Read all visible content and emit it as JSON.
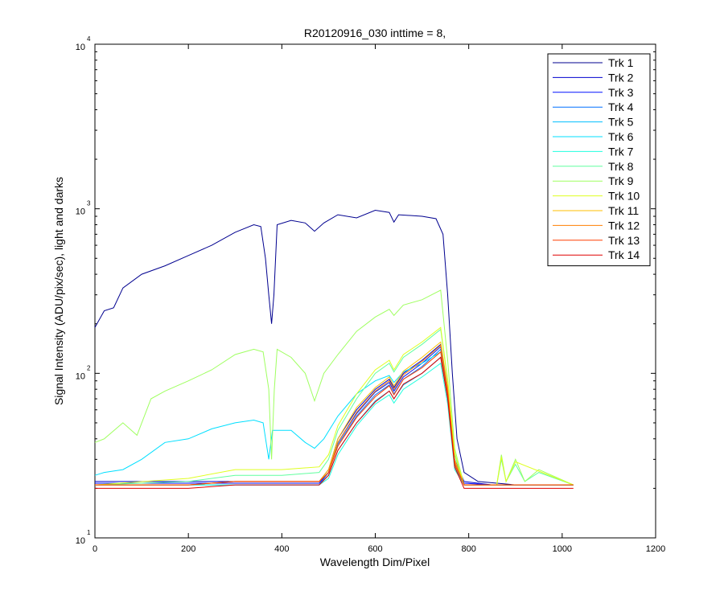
{
  "chart_data": {
    "type": "line",
    "title": "R20120916_030 inttime = 8,",
    "xlabel": "Wavelength Dim/Pixel",
    "ylabel": "Signal Intensity (ADU/pix/sec), light and darks",
    "xlim": [
      0,
      1200
    ],
    "ylim": [
      10,
      10000
    ],
    "yscale": "log",
    "xticks": [
      0,
      200,
      400,
      600,
      800,
      1000,
      1200
    ],
    "yticks": [
      10,
      100,
      1000,
      10000
    ],
    "ytick_labels": [
      {
        "base": "10",
        "exp": "1"
      },
      {
        "base": "10",
        "exp": "2"
      },
      {
        "base": "10",
        "exp": "3"
      },
      {
        "base": "10",
        "exp": "4"
      }
    ],
    "grid": false,
    "legend_position": "top-right",
    "series": [
      {
        "name": "Trk 1",
        "color": "#00008F",
        "values": [
          [
            0,
            190
          ],
          [
            20,
            240
          ],
          [
            40,
            250
          ],
          [
            60,
            330
          ],
          [
            100,
            400
          ],
          [
            150,
            450
          ],
          [
            200,
            520
          ],
          [
            250,
            600
          ],
          [
            300,
            720
          ],
          [
            340,
            800
          ],
          [
            355,
            780
          ],
          [
            365,
            500
          ],
          [
            372,
            300
          ],
          [
            378,
            200
          ],
          [
            383,
            300
          ],
          [
            390,
            800
          ],
          [
            420,
            850
          ],
          [
            450,
            820
          ],
          [
            470,
            730
          ],
          [
            490,
            820
          ],
          [
            520,
            920
          ],
          [
            560,
            880
          ],
          [
            600,
            980
          ],
          [
            630,
            950
          ],
          [
            640,
            830
          ],
          [
            650,
            920
          ],
          [
            700,
            900
          ],
          [
            730,
            870
          ],
          [
            745,
            700
          ],
          [
            755,
            300
          ],
          [
            765,
            100
          ],
          [
            775,
            40
          ],
          [
            790,
            25
          ],
          [
            820,
            22
          ],
          [
            900,
            21
          ],
          [
            1024,
            21
          ]
        ]
      },
      {
        "name": "Trk 2",
        "color": "#0000CF",
        "values": [
          [
            0,
            22
          ],
          [
            200,
            22
          ],
          [
            400,
            22
          ],
          [
            480,
            22
          ],
          [
            500,
            26
          ],
          [
            520,
            40
          ],
          [
            560,
            60
          ],
          [
            600,
            80
          ],
          [
            630,
            92
          ],
          [
            640,
            82
          ],
          [
            660,
            100
          ],
          [
            700,
            120
          ],
          [
            740,
            150
          ],
          [
            755,
            80
          ],
          [
            770,
            30
          ],
          [
            790,
            22
          ],
          [
            850,
            21
          ],
          [
            1024,
            21
          ]
        ]
      },
      {
        "name": "Trk 3",
        "color": "#0010FF",
        "values": [
          [
            0,
            21.5
          ],
          [
            200,
            21.5
          ],
          [
            400,
            21.5
          ],
          [
            480,
            21.5
          ],
          [
            500,
            25
          ],
          [
            520,
            38
          ],
          [
            560,
            57
          ],
          [
            600,
            77
          ],
          [
            630,
            88
          ],
          [
            640,
            78
          ],
          [
            660,
            95
          ],
          [
            700,
            115
          ],
          [
            740,
            145
          ],
          [
            755,
            78
          ],
          [
            770,
            29
          ],
          [
            790,
            21.5
          ],
          [
            850,
            21
          ],
          [
            1024,
            21
          ]
        ]
      },
      {
        "name": "Trk 4",
        "color": "#0070FF",
        "values": [
          [
            0,
            21
          ],
          [
            200,
            21
          ],
          [
            400,
            21
          ],
          [
            480,
            21
          ],
          [
            500,
            25
          ],
          [
            520,
            37
          ],
          [
            560,
            55
          ],
          [
            600,
            74
          ],
          [
            630,
            85
          ],
          [
            640,
            75
          ],
          [
            660,
            92
          ],
          [
            700,
            110
          ],
          [
            740,
            140
          ],
          [
            755,
            75
          ],
          [
            770,
            28
          ],
          [
            790,
            21
          ],
          [
            1024,
            21
          ]
        ]
      },
      {
        "name": "Trk 5",
        "color": "#00BFFF",
        "values": [
          [
            0,
            21
          ],
          [
            200,
            21
          ],
          [
            400,
            21
          ],
          [
            480,
            21
          ],
          [
            500,
            24
          ],
          [
            520,
            34
          ],
          [
            560,
            50
          ],
          [
            600,
            68
          ],
          [
            630,
            78
          ],
          [
            640,
            70
          ],
          [
            660,
            85
          ],
          [
            700,
            100
          ],
          [
            740,
            125
          ],
          [
            755,
            70
          ],
          [
            770,
            27
          ],
          [
            790,
            21
          ],
          [
            1024,
            21
          ]
        ]
      },
      {
        "name": "Trk 6",
        "color": "#00DFFF",
        "values": [
          [
            0,
            24
          ],
          [
            20,
            25
          ],
          [
            60,
            26
          ],
          [
            100,
            30
          ],
          [
            150,
            38
          ],
          [
            200,
            40
          ],
          [
            250,
            46
          ],
          [
            300,
            50
          ],
          [
            340,
            52
          ],
          [
            360,
            50
          ],
          [
            372,
            30
          ],
          [
            380,
            45
          ],
          [
            420,
            45
          ],
          [
            450,
            38
          ],
          [
            470,
            35
          ],
          [
            490,
            40
          ],
          [
            520,
            55
          ],
          [
            560,
            75
          ],
          [
            600,
            90
          ],
          [
            630,
            97
          ],
          [
            640,
            88
          ],
          [
            660,
            102
          ],
          [
            700,
            115
          ],
          [
            740,
            135
          ],
          [
            755,
            72
          ],
          [
            770,
            28
          ],
          [
            790,
            21
          ],
          [
            1024,
            21
          ]
        ]
      },
      {
        "name": "Trk 7",
        "color": "#20FFDF",
        "values": [
          [
            0,
            21
          ],
          [
            200,
            21
          ],
          [
            400,
            21
          ],
          [
            480,
            21
          ],
          [
            500,
            23
          ],
          [
            520,
            32
          ],
          [
            560,
            48
          ],
          [
            600,
            65
          ],
          [
            630,
            74
          ],
          [
            640,
            66
          ],
          [
            660,
            80
          ],
          [
            700,
            95
          ],
          [
            740,
            115
          ],
          [
            755,
            65
          ],
          [
            770,
            26
          ],
          [
            790,
            21
          ],
          [
            1024,
            21
          ]
        ]
      },
      {
        "name": "Trk 8",
        "color": "#60FF9F",
        "values": [
          [
            0,
            21
          ],
          [
            200,
            22
          ],
          [
            300,
            24
          ],
          [
            400,
            24
          ],
          [
            480,
            25
          ],
          [
            500,
            30
          ],
          [
            520,
            45
          ],
          [
            560,
            70
          ],
          [
            600,
            100
          ],
          [
            630,
            115
          ],
          [
            640,
            102
          ],
          [
            660,
            125
          ],
          [
            700,
            150
          ],
          [
            740,
            185
          ],
          [
            755,
            90
          ],
          [
            770,
            32
          ],
          [
            790,
            21
          ],
          [
            860,
            21
          ],
          [
            870,
            30
          ],
          [
            880,
            22
          ],
          [
            900,
            28
          ],
          [
            920,
            22
          ],
          [
            950,
            25
          ],
          [
            1024,
            21
          ]
        ]
      },
      {
        "name": "Trk 9",
        "color": "#9FFF60",
        "values": [
          [
            0,
            38
          ],
          [
            20,
            40
          ],
          [
            60,
            50
          ],
          [
            90,
            42
          ],
          [
            120,
            70
          ],
          [
            150,
            78
          ],
          [
            200,
            90
          ],
          [
            250,
            105
          ],
          [
            300,
            130
          ],
          [
            340,
            140
          ],
          [
            360,
            135
          ],
          [
            372,
            80
          ],
          [
            378,
            30
          ],
          [
            384,
            80
          ],
          [
            390,
            140
          ],
          [
            420,
            125
          ],
          [
            450,
            100
          ],
          [
            470,
            68
          ],
          [
            490,
            100
          ],
          [
            520,
            130
          ],
          [
            560,
            180
          ],
          [
            600,
            220
          ],
          [
            630,
            245
          ],
          [
            640,
            225
          ],
          [
            660,
            260
          ],
          [
            700,
            280
          ],
          [
            740,
            320
          ],
          [
            755,
            120
          ],
          [
            770,
            35
          ],
          [
            790,
            21
          ],
          [
            860,
            21
          ],
          [
            870,
            32
          ],
          [
            880,
            22
          ],
          [
            900,
            30
          ],
          [
            920,
            22
          ],
          [
            950,
            26
          ],
          [
            1024,
            21
          ]
        ]
      },
      {
        "name": "Trk 10",
        "color": "#DFFF20",
        "values": [
          [
            0,
            21
          ],
          [
            200,
            23
          ],
          [
            300,
            26
          ],
          [
            400,
            26
          ],
          [
            480,
            27
          ],
          [
            500,
            32
          ],
          [
            520,
            48
          ],
          [
            560,
            75
          ],
          [
            600,
            105
          ],
          [
            630,
            120
          ],
          [
            640,
            105
          ],
          [
            660,
            130
          ],
          [
            700,
            155
          ],
          [
            740,
            190
          ],
          [
            755,
            92
          ],
          [
            770,
            33
          ],
          [
            790,
            21
          ],
          [
            860,
            21
          ],
          [
            870,
            31
          ],
          [
            880,
            22
          ],
          [
            900,
            29
          ],
          [
            1024,
            21
          ]
        ]
      },
      {
        "name": "Trk 11",
        "color": "#FFBF00",
        "values": [
          [
            0,
            21
          ],
          [
            200,
            21
          ],
          [
            300,
            22
          ],
          [
            400,
            22
          ],
          [
            480,
            22
          ],
          [
            500,
            26
          ],
          [
            520,
            40
          ],
          [
            560,
            62
          ],
          [
            600,
            82
          ],
          [
            630,
            95
          ],
          [
            640,
            84
          ],
          [
            660,
            103
          ],
          [
            700,
            125
          ],
          [
            740,
            155
          ],
          [
            755,
            82
          ],
          [
            770,
            30
          ],
          [
            790,
            21
          ],
          [
            1024,
            21
          ]
        ]
      },
      {
        "name": "Trk 12",
        "color": "#FF7F00",
        "values": [
          [
            0,
            21
          ],
          [
            200,
            21
          ],
          [
            300,
            22
          ],
          [
            400,
            22
          ],
          [
            480,
            22
          ],
          [
            500,
            25
          ],
          [
            520,
            38
          ],
          [
            560,
            58
          ],
          [
            600,
            78
          ],
          [
            630,
            90
          ],
          [
            640,
            80
          ],
          [
            660,
            98
          ],
          [
            700,
            118
          ],
          [
            740,
            148
          ],
          [
            755,
            80
          ],
          [
            770,
            29
          ],
          [
            790,
            21
          ],
          [
            1024,
            21
          ]
        ]
      },
      {
        "name": "Trk 13",
        "color": "#FF3F00",
        "values": [
          [
            0,
            21
          ],
          [
            200,
            21
          ],
          [
            300,
            22
          ],
          [
            400,
            22
          ],
          [
            480,
            22
          ],
          [
            500,
            25
          ],
          [
            520,
            36
          ],
          [
            560,
            54
          ],
          [
            600,
            72
          ],
          [
            630,
            84
          ],
          [
            640,
            74
          ],
          [
            660,
            92
          ],
          [
            700,
            108
          ],
          [
            740,
            135
          ],
          [
            755,
            75
          ],
          [
            770,
            28
          ],
          [
            790,
            21
          ],
          [
            1024,
            21
          ]
        ]
      },
      {
        "name": "Trk 14",
        "color": "#DF0000",
        "values": [
          [
            0,
            20
          ],
          [
            200,
            20
          ],
          [
            300,
            21
          ],
          [
            400,
            21
          ],
          [
            480,
            21
          ],
          [
            500,
            24
          ],
          [
            520,
            34
          ],
          [
            560,
            50
          ],
          [
            600,
            67
          ],
          [
            630,
            78
          ],
          [
            640,
            70
          ],
          [
            660,
            86
          ],
          [
            700,
            100
          ],
          [
            740,
            125
          ],
          [
            755,
            70
          ],
          [
            770,
            27
          ],
          [
            790,
            20
          ],
          [
            1024,
            20
          ]
        ]
      }
    ]
  }
}
